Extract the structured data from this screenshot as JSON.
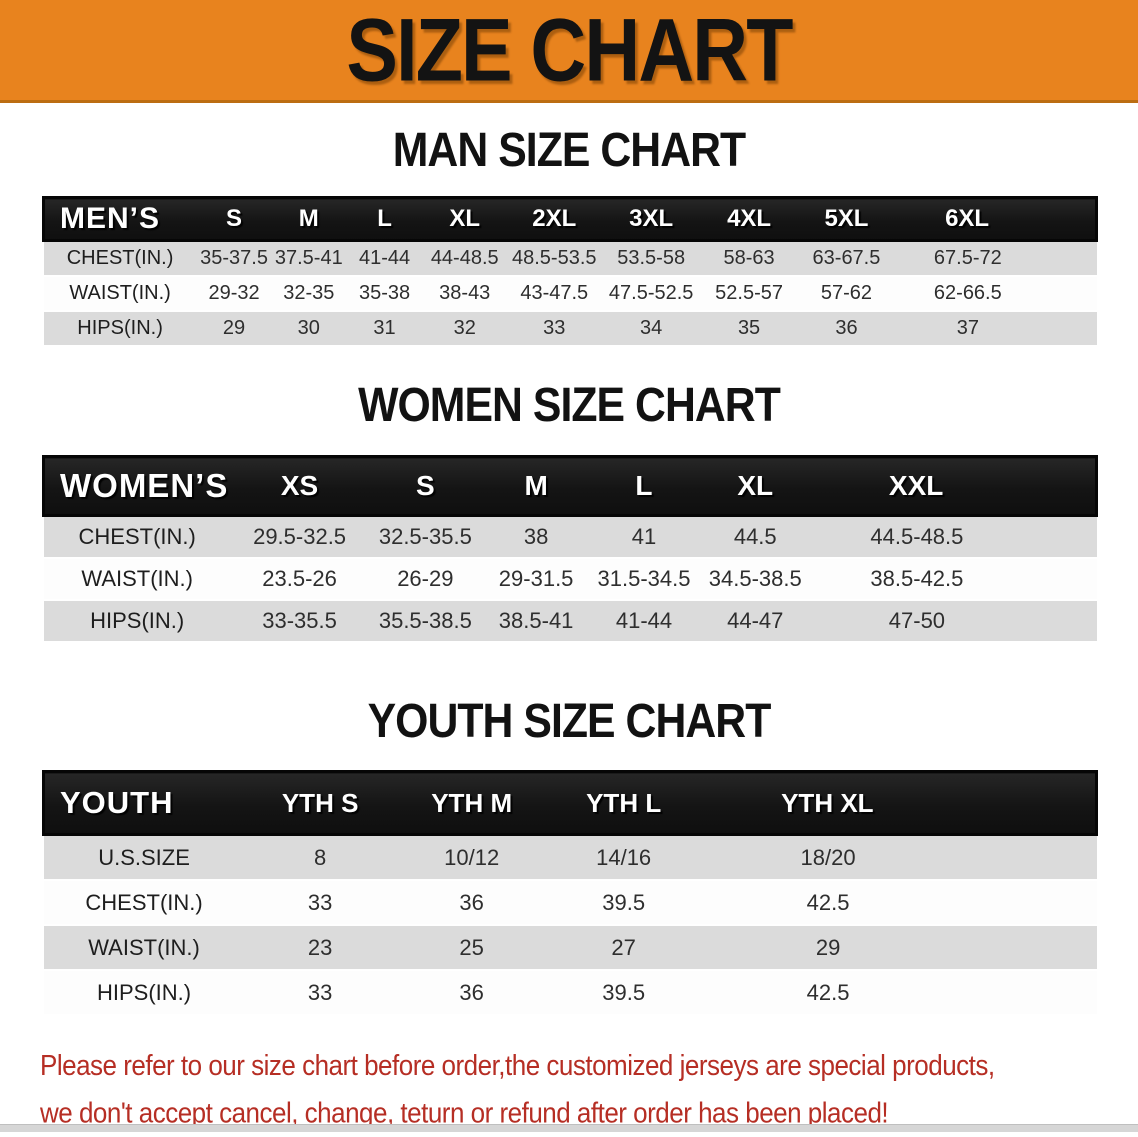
{
  "banner": {
    "title": "SIZE CHART"
  },
  "colors": {
    "banner_orange": "#e8831e",
    "header_black": "#141414",
    "row_gray": "#dbdbdb",
    "row_white": "#fdfdfd",
    "note_red": "#b62e24"
  },
  "sections": [
    {
      "heading": "MAN SIZE CHART",
      "table": {
        "label": "MEN’S",
        "sizes": [
          "S",
          "M",
          "L",
          "XL",
          "2XL",
          "3XL",
          "4XL",
          "5XL",
          "6XL"
        ],
        "rows": [
          {
            "label": "CHEST(IN.)",
            "values": [
              "35-37.5",
              "37.5-41",
              "41-44",
              "44-48.5",
              "48.5-53.5",
              "53.5-58",
              "58-63",
              "63-67.5",
              "67.5-72"
            ]
          },
          {
            "label": "WAIST(IN.)",
            "values": [
              "29-32",
              "32-35",
              "35-38",
              "38-43",
              "43-47.5",
              "47.5-52.5",
              "52.5-57",
              "57-62",
              "62-66.5"
            ]
          },
          {
            "label": "HIPS(IN.)",
            "values": [
              "29",
              "30",
              "31",
              "32",
              "33",
              "34",
              "35",
              "36",
              "37"
            ]
          }
        ]
      }
    },
    {
      "heading": "WOMEN SIZE CHART",
      "table": {
        "label": "WOMEN’S",
        "sizes": [
          "XS",
          "S",
          "M",
          "L",
          "XL",
          "XXL"
        ],
        "rows": [
          {
            "label": "CHEST(IN.)",
            "values": [
              "29.5-32.5",
              "32.5-35.5",
              "38",
              "41",
              "44.5",
              "44.5-48.5"
            ]
          },
          {
            "label": "WAIST(IN.)",
            "values": [
              "23.5-26",
              "26-29",
              "29-31.5",
              "31.5-34.5",
              "34.5-38.5",
              "38.5-42.5"
            ]
          },
          {
            "label": "HIPS(IN.)",
            "values": [
              "33-35.5",
              "35.5-38.5",
              "38.5-41",
              "41-44",
              "44-47",
              "47-50"
            ]
          }
        ]
      }
    },
    {
      "heading": "YOUTH SIZE CHART",
      "table": {
        "label": "YOUTH",
        "sizes": [
          "YTH S",
          "YTH M",
          "YTH L",
          "YTH XL"
        ],
        "rows": [
          {
            "label": "U.S.SIZE",
            "values": [
              "8",
              "10/12",
              "14/16",
              "18/20"
            ]
          },
          {
            "label": "CHEST(IN.)",
            "values": [
              "33",
              "36",
              "39.5",
              "42.5"
            ]
          },
          {
            "label": "WAIST(IN.)",
            "values": [
              "23",
              "25",
              "27",
              "29"
            ]
          },
          {
            "label": "HIPS(IN.)",
            "values": [
              "33",
              "36",
              "39.5",
              "42.5"
            ]
          }
        ]
      }
    }
  ],
  "note": {
    "line1": "Please refer to our size chart before order,the customized jerseys are special products,",
    "line2": "we don't accept cancel, change, teturn or refund after order has been placed!"
  }
}
